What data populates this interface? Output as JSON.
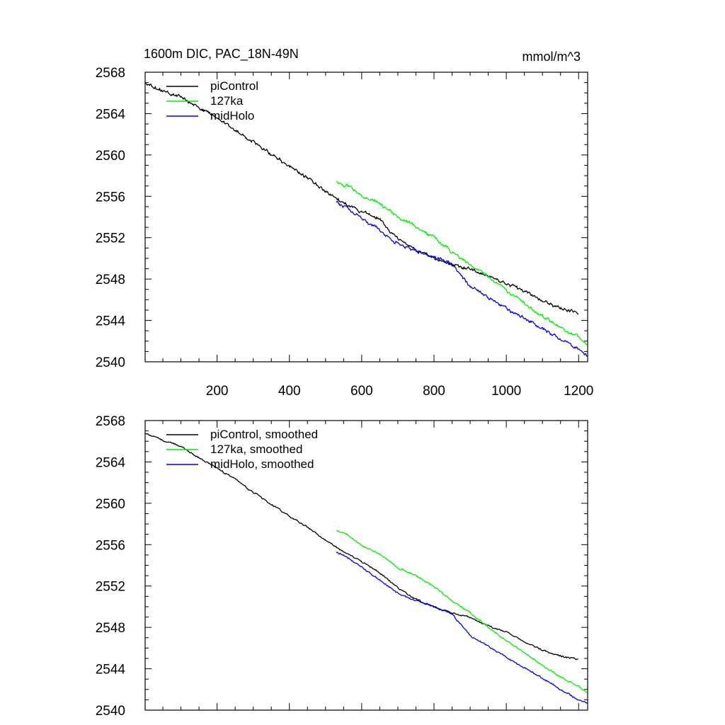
{
  "figure": {
    "title_left": "1600m DIC, PAC_18N-49N",
    "title_right": "mmol/m^3"
  },
  "chart_data": [
    {
      "type": "line",
      "name": "raw",
      "xlim": [
        1,
        1225
      ],
      "ylim": [
        2540,
        2568
      ],
      "yticks": [
        2540,
        2544,
        2548,
        2552,
        2556,
        2560,
        2564,
        2568
      ],
      "ytick_labels": [
        "2540",
        "2544",
        "2548",
        "2552",
        "2556",
        "2560",
        "2564",
        "2568"
      ],
      "xticks": [
        200,
        400,
        600,
        800,
        1000,
        1200
      ],
      "xtick_labels": [
        "200",
        "400",
        "600",
        "800",
        "1000",
        "1200"
      ],
      "grid": false,
      "legend_position": "top-left",
      "series": [
        {
          "name": "piControl",
          "color": "#000000",
          "x": [
            1,
            50,
            100,
            150,
            200,
            250,
            300,
            350,
            400,
            450,
            500,
            550,
            600,
            650,
            700,
            750,
            800,
            850,
            900,
            950,
            1000,
            1050,
            1100,
            1150,
            1200
          ],
          "y": [
            2566.9,
            2566.2,
            2565.6,
            2564.6,
            2563.6,
            2562.4,
            2561.3,
            2560.1,
            2558.9,
            2557.8,
            2556.5,
            2555.4,
            2554.5,
            2553.8,
            2551.9,
            2550.8,
            2550.0,
            2549.4,
            2549.0,
            2548.2,
            2547.6,
            2546.8,
            2545.9,
            2545.2,
            2544.6
          ]
        },
        {
          "name": "127ka",
          "color": "#00ee00",
          "x": [
            530,
            560,
            600,
            650,
            700,
            750,
            800,
            850,
            900,
            950,
            1000,
            1050,
            1100,
            1150,
            1200,
            1225
          ],
          "y": [
            2557.4,
            2557.0,
            2556.0,
            2555.3,
            2554.0,
            2553.1,
            2552.0,
            2550.6,
            2549.4,
            2548.2,
            2546.9,
            2545.7,
            2544.4,
            2543.3,
            2542.5,
            2541.5
          ]
        },
        {
          "name": "midHolo",
          "color": "#0000ee",
          "x": [
            530,
            560,
            600,
            650,
            700,
            750,
            800,
            850,
            900,
            950,
            1000,
            1050,
            1100,
            1150,
            1200,
            1225
          ],
          "y": [
            2555.4,
            2554.8,
            2553.9,
            2552.7,
            2551.4,
            2550.7,
            2550.1,
            2549.5,
            2547.3,
            2546.3,
            2545.2,
            2544.2,
            2543.2,
            2542.2,
            2541.2,
            2540.6
          ]
        }
      ]
    },
    {
      "type": "line",
      "name": "smoothed",
      "xlim": [
        1,
        1225
      ],
      "ylim": [
        2540,
        2568
      ],
      "yticks": [
        2540,
        2544,
        2548,
        2552,
        2556,
        2560,
        2564,
        2568
      ],
      "ytick_labels": [
        "2540",
        "2544",
        "2548",
        "2552",
        "2556",
        "2560",
        "2564",
        "2568"
      ],
      "xticks": [
        200,
        400,
        600,
        800,
        1000,
        1200
      ],
      "xtick_labels": [],
      "grid": false,
      "legend_position": "top-left",
      "series": [
        {
          "name": "piControl, smoothed",
          "color": "#000000",
          "x": [
            1,
            50,
            100,
            150,
            200,
            250,
            300,
            350,
            400,
            450,
            500,
            550,
            600,
            650,
            700,
            750,
            800,
            850,
            900,
            950,
            1000,
            1050,
            1100,
            1150,
            1200
          ],
          "y": [
            2566.8,
            2566.1,
            2565.5,
            2564.4,
            2563.4,
            2562.3,
            2561.1,
            2559.9,
            2558.8,
            2557.7,
            2556.4,
            2555.3,
            2554.4,
            2553.3,
            2551.8,
            2550.7,
            2550.0,
            2549.4,
            2549.0,
            2548.1,
            2547.6,
            2546.6,
            2545.8,
            2545.2,
            2544.9
          ]
        },
        {
          "name": "127ka, smoothed",
          "color": "#00ee00",
          "x": [
            530,
            560,
            600,
            650,
            700,
            750,
            800,
            850,
            900,
            950,
            1000,
            1050,
            1100,
            1150,
            1200,
            1225
          ],
          "y": [
            2557.4,
            2557.0,
            2555.9,
            2555.1,
            2553.8,
            2553.0,
            2552.0,
            2550.5,
            2549.4,
            2548.0,
            2546.7,
            2545.6,
            2544.3,
            2543.2,
            2542.3,
            2541.6
          ]
        },
        {
          "name": "midHolo, smoothed",
          "color": "#0000ee",
          "x": [
            530,
            560,
            600,
            650,
            700,
            750,
            800,
            850,
            900,
            950,
            1000,
            1050,
            1100,
            1150,
            1200,
            1225
          ],
          "y": [
            2555.3,
            2554.8,
            2553.8,
            2552.6,
            2551.3,
            2550.6,
            2550.0,
            2549.3,
            2547.2,
            2546.2,
            2545.1,
            2544.1,
            2543.1,
            2542.0,
            2541.0,
            2540.6
          ]
        }
      ]
    }
  ]
}
